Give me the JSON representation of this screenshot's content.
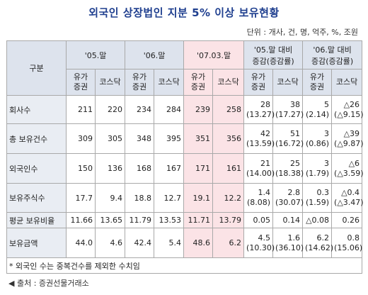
{
  "title": "외국인 상장법인 지분 5% 이상 보유현황",
  "unit": "단위 : 개사, 건, 명, 억주, %, 조원",
  "headers": {
    "category": "구분",
    "groups": [
      "'05.말",
      "'06.말",
      "'07.03.말",
      "'05.말 대비 증감(증감률)",
      "'06.말 대비 증감(증감률)"
    ],
    "group_lines": [
      [
        "'05.말"
      ],
      [
        "'06.말"
      ],
      [
        "'07.03.말"
      ],
      [
        "'05.말 대비",
        "증감(증감률)"
      ],
      [
        "'06.말 대비",
        "증감(증감률)"
      ]
    ],
    "sub_line1": "유가",
    "sub_line2": "증권",
    "kosdaq": "코스닥"
  },
  "rows": [
    {
      "label": "회사수",
      "values": [
        "211",
        "220",
        "234",
        "284",
        "239",
        "258"
      ],
      "chg": [
        [
          "28",
          "(13.27)"
        ],
        [
          "38",
          "(17.27)"
        ],
        [
          "5",
          "(2.14)"
        ],
        [
          "△26",
          "(△9.15)"
        ]
      ]
    },
    {
      "label": "총 보유건수",
      "values": [
        "309",
        "305",
        "348",
        "395",
        "351",
        "356"
      ],
      "chg": [
        [
          "42",
          "(13.59)"
        ],
        [
          "51",
          "(16.72)"
        ],
        [
          "3",
          "(0.86)"
        ],
        [
          "△39",
          "(△9.87)"
        ]
      ]
    },
    {
      "label": "외국인수",
      "values": [
        "150",
        "136",
        "168",
        "167",
        "171",
        "161"
      ],
      "chg": [
        [
          "21",
          "(14.00)"
        ],
        [
          "25",
          "(18.38)"
        ],
        [
          "3",
          "(1.79)"
        ],
        [
          "△6",
          "(△3.59)"
        ]
      ]
    },
    {
      "label": "보유주식수",
      "values": [
        "17.7",
        "9.4",
        "18.8",
        "12.7",
        "19.1",
        "12.2"
      ],
      "chg": [
        [
          "1.4",
          "(8.08)"
        ],
        [
          "2.8",
          "(30.07)"
        ],
        [
          "0.3",
          "(1.59)"
        ],
        [
          "△0.4",
          "(△3.47)"
        ]
      ]
    },
    {
      "label": "평균 보유비율",
      "values": [
        "11.66",
        "13.65",
        "11.79",
        "13.53",
        "11.71",
        "13.79"
      ],
      "chg": [
        [
          "0.05",
          ""
        ],
        [
          "0.14",
          ""
        ],
        [
          "△0.08",
          ""
        ],
        [
          "0.26",
          ""
        ]
      ]
    },
    {
      "label": "보유금액",
      "values": [
        "44.0",
        "4.6",
        "42.4",
        "5.4",
        "48.6",
        "6.2"
      ],
      "chg": [
        [
          "4.5",
          "(10.30)"
        ],
        [
          "1.6",
          "(36.10)"
        ],
        [
          "6.2",
          "(14.62)"
        ],
        [
          "0.8",
          "(15.06)"
        ]
      ]
    }
  ],
  "note": "* 외국인 수는 중복건수를 제외한 수치임",
  "source": "◀ 출처 : 증권선물거래소"
}
